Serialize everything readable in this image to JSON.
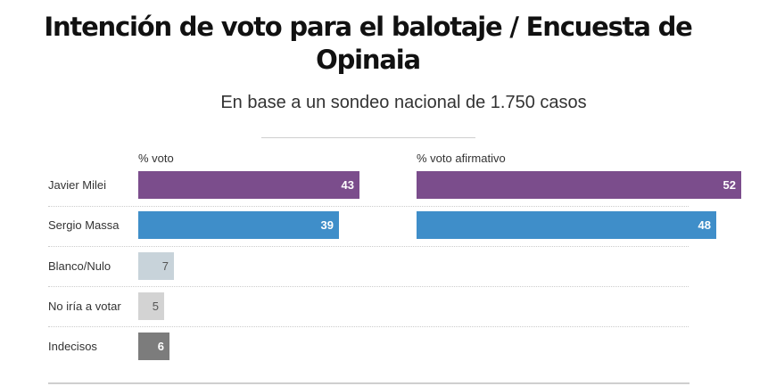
{
  "header": {
    "title": "Intención de voto para el balotaje / Encuesta de Opinaia",
    "subtitle": "En base a un sondeo nacional de 1.750 casos"
  },
  "chart_data": {
    "type": "bar",
    "orientation": "horizontal",
    "title": "Intención de voto para el balotaje / Encuesta de Opinaia",
    "subtitle": "En base a un sondeo nacional de 1.750 casos",
    "categories": [
      "Javier Milei",
      "Sergio Massa",
      "Blanco/Nulo",
      "No iría a votar",
      "Indecisos"
    ],
    "panels": [
      {
        "name": "% voto",
        "values": [
          43,
          39,
          7,
          5,
          6
        ],
        "colors": [
          "#7b4d8c",
          "#3f8ec9",
          "#c8d3da",
          "#d3d3d3",
          "#7c7c7c"
        ],
        "label_colors": [
          "#ffffff",
          "#ffffff",
          "#555555",
          "#555555",
          "#ffffff"
        ]
      },
      {
        "name": "% voto afirmativo",
        "values": [
          52,
          48,
          null,
          null,
          null
        ],
        "colors": [
          "#7b4d8c",
          "#3f8ec9",
          null,
          null,
          null
        ],
        "label_colors": [
          "#ffffff",
          "#ffffff",
          null,
          null,
          null
        ]
      }
    ],
    "data_labels": true,
    "grid": false,
    "legend": "none"
  }
}
